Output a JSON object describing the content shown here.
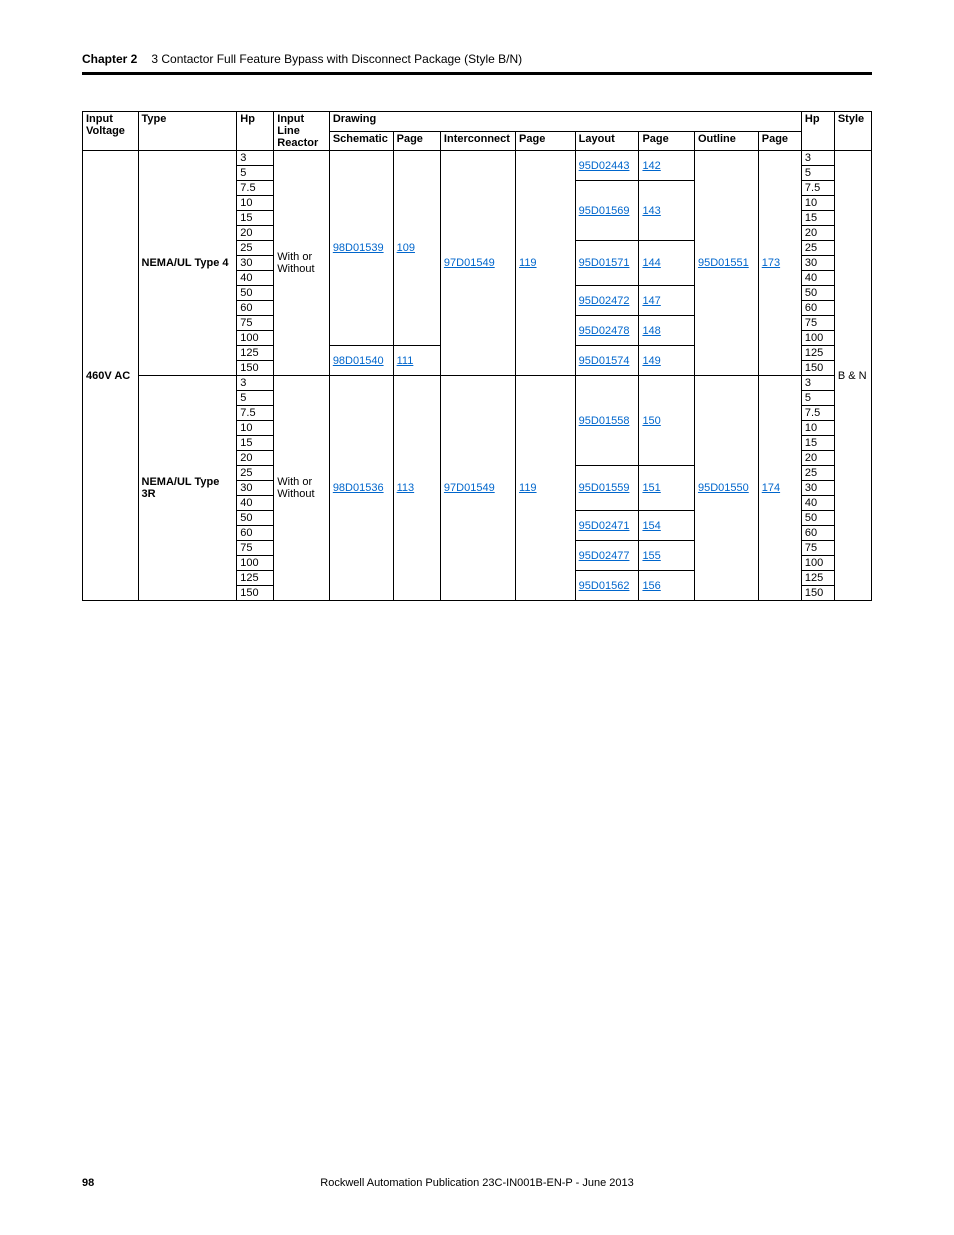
{
  "header": {
    "chapter": "Chapter 2",
    "title": "3 Contactor Full Feature Bypass with Disconnect Package (Style B/N)"
  },
  "footer": {
    "page_number": "98",
    "publication": "Rockwell Automation Publication 23C-IN001B-EN-P - June 2013"
  },
  "table": {
    "columns": {
      "input_voltage": "Input Voltage",
      "type": "Type",
      "hp": "Hp",
      "input_line_reactor": "Input Line Reactor",
      "drawing": "Drawing",
      "schematic": "Schematic",
      "schematic_page": "Page",
      "interconnect": "Interconnect",
      "interconnect_page": "Page",
      "layout": "Layout",
      "layout_page": "Page",
      "outline": "Outline",
      "outline_page": "Page",
      "hp2": "Hp",
      "style": "Style"
    },
    "input_voltage": "460V AC",
    "style": "B & N",
    "reactor": "With or Without",
    "types": [
      {
        "name": "NEMA/UL Type 4",
        "schematic_groups": [
          {
            "num": "98D01539",
            "page": "109",
            "hp": [
              "3",
              "5",
              "7.5",
              "10",
              "15",
              "20",
              "25",
              "30",
              "40",
              "50",
              "60",
              "75",
              "100"
            ]
          },
          {
            "num": "98D01540",
            "page": "111",
            "hp": [
              "125",
              "150"
            ]
          }
        ],
        "interconnect": {
          "num": "97D01549",
          "page": "119"
        },
        "layout_groups": [
          {
            "num": "95D02443",
            "page": "142",
            "span": 2
          },
          {
            "num": "95D01569",
            "page": "143",
            "span": 4
          },
          {
            "num": "95D01571",
            "page": "144",
            "span": 3
          },
          {
            "num": "95D02472",
            "page": "147",
            "span": 2
          },
          {
            "num": "95D02478",
            "page": "148",
            "span": 2
          },
          {
            "num": "95D01574",
            "page": "149",
            "span": 2
          }
        ],
        "outline": {
          "num": "95D01551",
          "page": "173"
        },
        "hp_list": [
          "3",
          "5",
          "7.5",
          "10",
          "15",
          "20",
          "25",
          "30",
          "40",
          "50",
          "60",
          "75",
          "100",
          "125",
          "150"
        ]
      },
      {
        "name": "NEMA/UL Type 3R",
        "schematic_groups": [
          {
            "num": "98D01536",
            "page": "113",
            "hp": [
              "3",
              "5",
              "7.5",
              "10",
              "15",
              "20",
              "25",
              "30",
              "40",
              "50",
              "60",
              "75",
              "100",
              "125",
              "150"
            ]
          }
        ],
        "interconnect": {
          "num": "97D01549",
          "page": "119"
        },
        "layout_groups": [
          {
            "num": "95D01558",
            "page": "150",
            "span": 6
          },
          {
            "num": "95D01559",
            "page": "151",
            "span": 3
          },
          {
            "num": "95D02471",
            "page": "154",
            "span": 2
          },
          {
            "num": "95D02477",
            "page": "155",
            "span": 2
          },
          {
            "num": "95D01562",
            "page": "156",
            "span": 2
          }
        ],
        "outline": {
          "num": "95D01550",
          "page": "174"
        },
        "hp_list": [
          "3",
          "5",
          "7.5",
          "10",
          "15",
          "20",
          "25",
          "30",
          "40",
          "50",
          "60",
          "75",
          "100",
          "125",
          "150"
        ]
      }
    ]
  }
}
